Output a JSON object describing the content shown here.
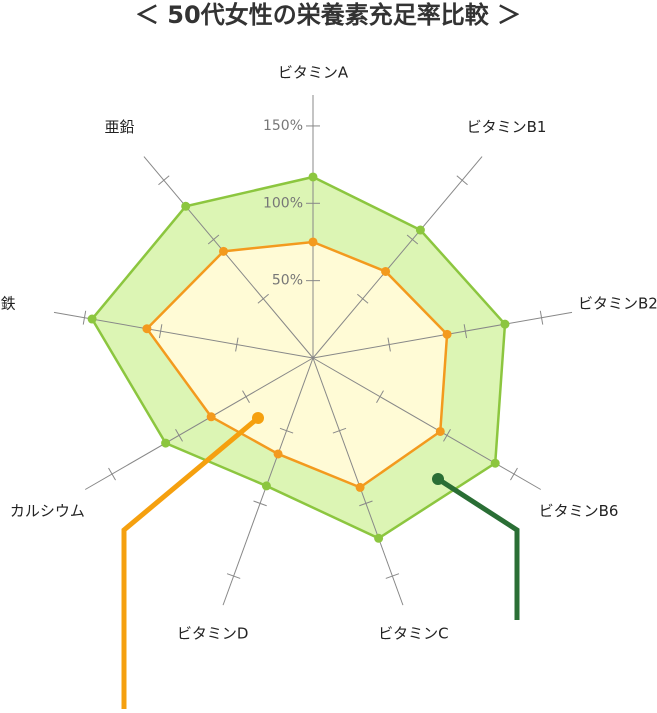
{
  "chart_data": {
    "type": "radar",
    "title": "＜ 50代女性の栄養素充足率比較 ＞",
    "categories": [
      "ビタミンA",
      "ビタミンB1",
      "ビタミンB2",
      "ビタミンB6",
      "ビタミンC",
      "ビタミンD",
      "カルシウム",
      "鉄",
      "亜鉛"
    ],
    "series": [
      {
        "color": "#8cc63f",
        "fill": "#dcf5b4",
        "values": [
          117,
          108,
          126,
          136,
          124,
          88,
          110,
          145,
          128
        ]
      },
      {
        "color": "#f39a1e",
        "fill": "#fffbd6",
        "values": [
          75,
          73,
          88,
          95,
          89,
          66,
          76,
          109,
          90
        ]
      }
    ],
    "rlim": [
      0,
      170
    ],
    "rticks": [
      {
        "value": 50,
        "label": "50%"
      },
      {
        "value": 100,
        "label": "100%"
      },
      {
        "value": 150,
        "label": "150%"
      }
    ],
    "grid": true
  }
}
